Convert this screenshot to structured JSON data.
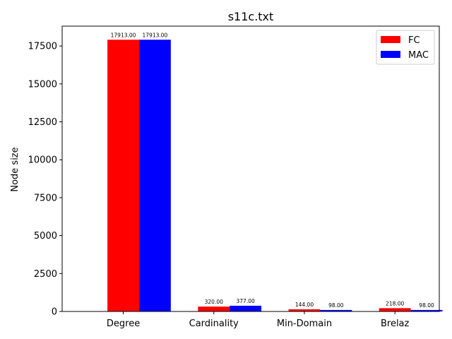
{
  "chart_data": {
    "type": "bar",
    "title": "s11c.txt",
    "xlabel": "",
    "ylabel": "Node size",
    "categories": [
      "Degree",
      "Cardinality",
      "Min-Domain",
      "Brelaz"
    ],
    "series": [
      {
        "name": "FC",
        "color": "#ff0000",
        "values": [
          17913,
          320,
          144,
          218
        ],
        "labels": [
          "17913.00",
          "320.00",
          "144.00",
          "218.00"
        ]
      },
      {
        "name": "MAC",
        "color": "#0000ff",
        "values": [
          17913,
          377,
          98,
          98
        ],
        "labels": [
          "17913.00",
          "377.00",
          "98.00",
          "98.00"
        ]
      }
    ],
    "ylim": [
      0,
      18809
    ],
    "yticks": [
      0,
      2500,
      5000,
      7500,
      10000,
      12500,
      15000,
      17500
    ],
    "grid": false,
    "legend_position": "top-right"
  }
}
